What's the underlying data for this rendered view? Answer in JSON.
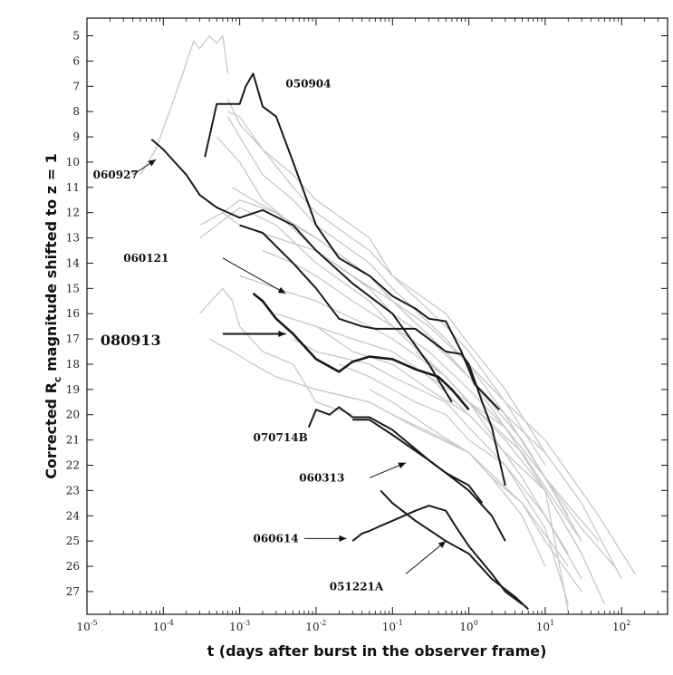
{
  "chart_data": {
    "type": "line",
    "xscale": "log",
    "xlim": [
      1e-05,
      400
    ],
    "ylim": [
      4.3,
      27.9
    ],
    "y_inverted": true,
    "grid": false,
    "xlabel": "t (days after burst in the observer frame)",
    "ylabel": "Corrected R",
    "ylabel_sub": "c",
    "ylabel_tail": " magnitude shifted to z = 1",
    "x_ticks": [
      {
        "value": 1e-05,
        "base": "10",
        "exp": "-5"
      },
      {
        "value": 0.0001,
        "base": "10",
        "exp": "-4"
      },
      {
        "value": 0.001,
        "base": "10",
        "exp": "-3"
      },
      {
        "value": 0.01,
        "base": "10",
        "exp": "-2"
      },
      {
        "value": 0.1,
        "base": "10",
        "exp": "-1"
      },
      {
        "value": 1,
        "base": "10",
        "exp": "0"
      },
      {
        "value": 10,
        "base": "10",
        "exp": "1"
      },
      {
        "value": 100,
        "base": "10",
        "exp": "2"
      }
    ],
    "y_ticks": [
      "5",
      "6",
      "7",
      "8",
      "9",
      "10",
      "11",
      "12",
      "13",
      "14",
      "15",
      "16",
      "17",
      "18",
      "19",
      "20",
      "21",
      "22",
      "23",
      "24",
      "25",
      "26",
      "27"
    ],
    "background_color": "#c8c8c8",
    "highlight_color": "#1a1a1a",
    "background_series": [
      {
        "x": [
          5e-05,
          8e-05,
          0.00012,
          0.00018,
          0.00025,
          0.0003,
          0.0004,
          0.0005,
          0.0006,
          0.0007
        ],
        "y": [
          10.5,
          9.5,
          8.0,
          6.5,
          5.2,
          5.5,
          5.0,
          5.3,
          5.0,
          6.5
        ]
      },
      {
        "x": [
          0.0007,
          0.001,
          0.002,
          0.005,
          0.01,
          0.05,
          0.1,
          0.5,
          1,
          3,
          10
        ],
        "y": [
          7.5,
          8.5,
          9.5,
          10.5,
          11.5,
          13.0,
          14.5,
          16.5,
          17.5,
          19.5,
          22.0
        ]
      },
      {
        "x": [
          0.0007,
          0.001,
          0.002,
          0.005,
          0.01,
          0.05,
          0.1,
          0.5,
          1,
          3,
          10
        ],
        "y": [
          8.2,
          9.0,
          10.5,
          11.5,
          12.5,
          14.0,
          15.0,
          17.0,
          18.0,
          20.0,
          22.5
        ]
      },
      {
        "x": [
          0.0007,
          0.001,
          0.002,
          0.005,
          0.01,
          0.05,
          0.1,
          0.5,
          1,
          3,
          10
        ],
        "y": [
          8.0,
          8.2,
          9.5,
          11.0,
          12.0,
          13.5,
          14.5,
          16.0,
          17.2,
          19.0,
          21.5
        ]
      },
      {
        "x": [
          0.0005,
          0.001,
          0.002,
          0.005,
          0.01,
          0.05,
          0.1,
          0.5,
          1,
          3,
          10
        ],
        "y": [
          9.0,
          10.0,
          11.5,
          12.5,
          13.0,
          14.5,
          15.5,
          17.5,
          18.5,
          20.5,
          23.0
        ]
      },
      {
        "x": [
          0.0008,
          0.0015,
          0.003,
          0.01,
          0.05,
          0.1,
          0.5,
          1,
          5,
          20
        ],
        "y": [
          11.0,
          11.5,
          12.0,
          13.0,
          14.5,
          15.5,
          17.5,
          18.5,
          21.0,
          24.0
        ]
      },
      {
        "x": [
          0.0003,
          0.0006,
          0.001,
          0.003,
          0.01,
          0.05,
          0.1,
          0.3,
          1,
          3,
          10,
          30
        ],
        "y": [
          12.5,
          12.0,
          12.5,
          13.0,
          13.5,
          15.0,
          16.0,
          17.0,
          18.5,
          20.0,
          22.5,
          25.0
        ]
      },
      {
        "x": [
          0.0003,
          0.0005,
          0.001,
          0.003,
          0.01,
          0.05,
          0.1,
          0.5,
          1,
          5,
          20
        ],
        "y": [
          13.0,
          12.5,
          11.8,
          12.5,
          14.0,
          15.5,
          16.5,
          18.5,
          19.5,
          22.5,
          25.5
        ]
      },
      {
        "x": [
          0.0006,
          0.001,
          0.003,
          0.01,
          0.03,
          0.1,
          0.3,
          1,
          3,
          10,
          50,
          150
        ],
        "y": [
          12.0,
          11.5,
          12.0,
          13.5,
          14.5,
          15.5,
          16.5,
          18.0,
          19.5,
          21.0,
          24.0,
          26.3
        ]
      },
      {
        "x": [
          0.002,
          0.005,
          0.01,
          0.03,
          0.1,
          0.3,
          1,
          3,
          10,
          50
        ],
        "y": [
          13.5,
          14.0,
          14.5,
          15.5,
          16.5,
          17.5,
          19.0,
          20.5,
          22.5,
          25.0
        ]
      },
      {
        "x": [
          0.001,
          0.003,
          0.01,
          0.05,
          0.1,
          0.5,
          1,
          5,
          30
        ],
        "y": [
          14.5,
          15.0,
          15.5,
          16.5,
          17.0,
          18.5,
          19.5,
          21.5,
          25.0
        ]
      },
      {
        "x": [
          0.0003,
          0.0006,
          0.0008,
          0.001,
          0.002,
          0.005,
          0.01,
          0.03
        ],
        "y": [
          16.0,
          15.0,
          15.5,
          16.5,
          17.5,
          18.0,
          19.5,
          20.0
        ]
      },
      {
        "x": [
          0.0004,
          0.0008,
          0.0015,
          0.003,
          0.01,
          0.05,
          0.2,
          1,
          5,
          20
        ],
        "y": [
          17.0,
          17.5,
          18.0,
          18.5,
          19.0,
          19.5,
          20.5,
          21.5,
          23.5,
          26.0
        ]
      },
      {
        "x": [
          0.003,
          0.01,
          0.03,
          0.1,
          0.3,
          1,
          3,
          10,
          30
        ],
        "y": [
          16.0,
          16.5,
          17.5,
          18.0,
          19.0,
          20.0,
          21.5,
          23.0,
          25.5
        ]
      },
      {
        "x": [
          0.005,
          0.01,
          0.05,
          0.1,
          0.5,
          1,
          3,
          10,
          30
        ],
        "y": [
          17.0,
          17.5,
          18.0,
          18.5,
          19.5,
          20.5,
          22.0,
          24.0,
          26.5
        ]
      },
      {
        "x": [
          0.01,
          0.03,
          0.1,
          0.3,
          1,
          3,
          10,
          30,
          60
        ],
        "y": [
          16.5,
          17.0,
          17.5,
          18.5,
          19.5,
          21.0,
          23.0,
          25.5,
          27.5
        ]
      },
      {
        "x": [
          0.02,
          0.05,
          0.2,
          0.5,
          1,
          3,
          10,
          20
        ],
        "y": [
          18.0,
          18.5,
          19.5,
          20.0,
          21.0,
          22.0,
          24.5,
          27.5
        ]
      },
      {
        "x": [
          0.01,
          0.05,
          0.1,
          0.5,
          1,
          2,
          5,
          10
        ],
        "y": [
          19.0,
          19.5,
          20.0,
          21.0,
          21.5,
          22.5,
          24.0,
          26.0
        ]
      },
      {
        "x": [
          0.05,
          0.1,
          0.3,
          1,
          2,
          5,
          10,
          30
        ],
        "y": [
          19.0,
          19.5,
          20.5,
          21.5,
          22.5,
          23.5,
          25.0,
          27.0
        ]
      },
      {
        "x": [
          0.1,
          0.3,
          1,
          3,
          10,
          30,
          100
        ],
        "y": [
          16.0,
          17.0,
          18.5,
          20.0,
          21.5,
          23.5,
          26.5
        ]
      },
      {
        "x": [
          0.2,
          0.5,
          1,
          3,
          10,
          30,
          80
        ],
        "y": [
          17.5,
          18.5,
          19.5,
          20.5,
          22.5,
          24.5,
          26.0
        ]
      },
      {
        "x": [
          0.3,
          1,
          3,
          10,
          20
        ],
        "y": [
          18.5,
          20.0,
          21.5,
          23.0,
          27.8
        ]
      }
    ],
    "highlight_series": [
      {
        "name": "050904",
        "x": [
          0.00035,
          0.0005,
          0.0008,
          0.001,
          0.0012,
          0.0015,
          0.002,
          0.003,
          0.005,
          0.01,
          0.02,
          0.05,
          0.1,
          0.2,
          0.3,
          0.5,
          0.8,
          1.2,
          2.5
        ],
        "y": [
          9.8,
          7.7,
          7.7,
          7.7,
          7.0,
          6.5,
          7.8,
          8.2,
          10.0,
          12.5,
          13.8,
          14.5,
          15.3,
          15.8,
          16.2,
          16.3,
          17.5,
          18.8,
          19.8
        ]
      },
      {
        "name": "060927",
        "x": [
          7e-05,
          0.0001,
          0.0002,
          0.0003,
          0.0005,
          0.001,
          0.002,
          0.005,
          0.01,
          0.03,
          0.1,
          0.3,
          0.6
        ],
        "y": [
          9.1,
          9.5,
          10.5,
          11.3,
          11.8,
          12.2,
          11.9,
          12.5,
          13.5,
          14.8,
          16.0,
          18.0,
          19.5
        ]
      },
      {
        "name": "060121",
        "x": [
          0.001,
          0.002,
          0.005,
          0.01,
          0.02,
          0.04,
          0.06,
          0.1,
          0.2,
          0.5,
          0.8,
          1,
          1.5,
          2,
          3
        ],
        "y": [
          12.5,
          12.8,
          14.0,
          15.0,
          16.2,
          16.5,
          16.6,
          16.6,
          16.6,
          17.5,
          17.6,
          18.0,
          19.5,
          20.5,
          22.8
        ]
      },
      {
        "name": "080913",
        "x": [
          0.0015,
          0.002,
          0.003,
          0.005,
          0.01,
          0.02,
          0.03,
          0.05,
          0.1,
          0.2,
          0.4,
          0.6,
          1
        ],
        "y": [
          15.2,
          15.5,
          16.2,
          16.8,
          17.8,
          18.3,
          17.9,
          17.7,
          17.8,
          18.2,
          18.5,
          19.0,
          19.8
        ]
      },
      {
        "name": "070714B",
        "x": [
          0.008,
          0.01,
          0.015,
          0.02,
          0.03,
          0.05,
          0.1,
          0.3,
          0.5,
          1,
          1.5
        ],
        "y": [
          20.5,
          19.8,
          20.0,
          19.7,
          20.1,
          20.1,
          20.6,
          21.8,
          22.3,
          22.8,
          23.5
        ]
      },
      {
        "name": "060313",
        "x": [
          0.03,
          0.05,
          0.1,
          0.3,
          0.5,
          1,
          2,
          3
        ],
        "y": [
          20.2,
          20.2,
          20.8,
          21.8,
          22.3,
          23.0,
          24.0,
          25.0
        ]
      },
      {
        "name": "060614",
        "x": [
          0.03,
          0.04,
          0.05,
          0.07,
          0.1,
          0.2,
          0.3,
          0.5,
          0.7,
          1,
          2,
          3,
          5
        ],
        "y": [
          25.0,
          24.7,
          24.6,
          24.4,
          24.2,
          23.8,
          23.6,
          23.8,
          24.5,
          25.2,
          26.3,
          27.0,
          27.5
        ]
      },
      {
        "name": "051221A",
        "x": [
          0.07,
          0.1,
          0.2,
          0.5,
          1,
          2,
          4,
          6
        ],
        "y": [
          23.0,
          23.5,
          24.2,
          25.0,
          25.5,
          26.5,
          27.2,
          27.7
        ]
      }
    ],
    "annotations": [
      {
        "text": "050904",
        "size": "normal",
        "tx": 0.004,
        "ty": 6.9
      },
      {
        "text": "060927",
        "size": "normal",
        "tx": 1.2e-05,
        "ty": 10.5,
        "ax": 4e-05,
        "ay": 10.5,
        "hx": 8e-05,
        "hy": 9.9
      },
      {
        "text": "060121",
        "size": "normal",
        "tx": 3e-05,
        "ty": 13.8,
        "ax": 0.0006,
        "ay": 13.8,
        "hx": 0.004,
        "hy": 15.2
      },
      {
        "text": "080913",
        "size": "big",
        "tx": 1.5e-05,
        "ty": 17.1,
        "ax": 0.0006,
        "ay": 16.8,
        "hx": 0.004,
        "hy": 16.8
      },
      {
        "text": "070714B",
        "size": "normal",
        "tx": 0.0015,
        "ty": 20.9
      },
      {
        "text": "060313",
        "size": "normal",
        "tx": 0.006,
        "ty": 22.5,
        "ax": 0.05,
        "ay": 22.5,
        "hx": 0.15,
        "hy": 21.9
      },
      {
        "text": "060614",
        "size": "normal",
        "tx": 0.0015,
        "ty": 24.9,
        "ax": 0.007,
        "ay": 24.9,
        "hx": 0.025,
        "hy": 24.9
      },
      {
        "text": "051221A",
        "size": "normal",
        "tx": 0.015,
        "ty": 26.8,
        "ax": 0.15,
        "ay": 26.3,
        "hx": 0.5,
        "hy": 25.0
      }
    ]
  }
}
